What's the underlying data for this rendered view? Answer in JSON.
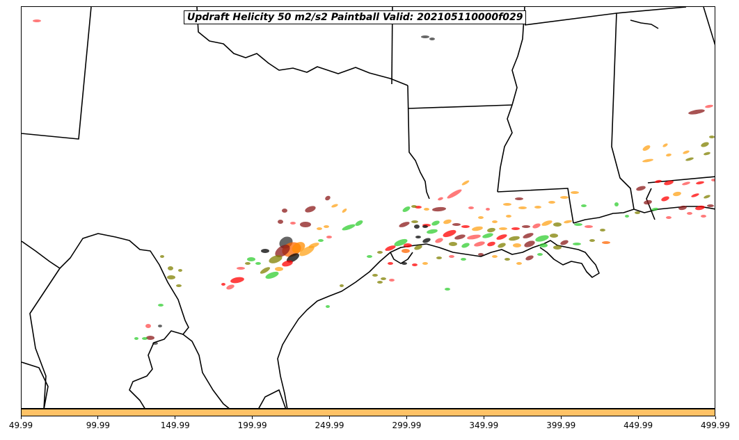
{
  "title": "Updraft Helicity 50 m2/s2 Paintball Valid: 202105110000f029",
  "colorbar": {
    "color": "#ffc266",
    "ticks": [
      "49.99",
      "99.99",
      "149.99",
      "199.99",
      "249.99",
      "299.99",
      "349.99",
      "399.99",
      "449.99",
      "499.99"
    ]
  },
  "paint_colors": [
    "#ff4d4d",
    "#ff0000",
    "#8b1a1a",
    "#ffa31a",
    "#808000",
    "#32cd32",
    "#ff6600",
    "#000000"
  ]
}
